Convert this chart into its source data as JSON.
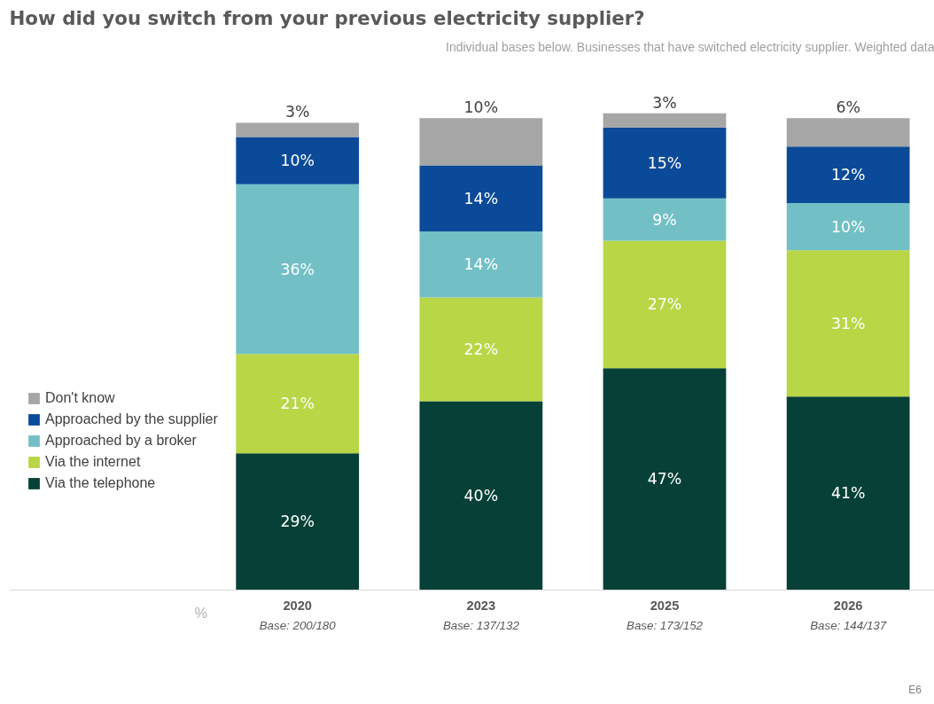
{
  "chart_data": {
    "type": "bar",
    "stacked": true,
    "legend": "left",
    "grid": false,
    "title": "How did you switch from your previous electricity supplier?",
    "subtitle": "Individual bases below. Businesses that have switched electricity supplier. Weighted data",
    "ylabel": "%",
    "categories": [
      "2020",
      "2023",
      "2025",
      "2026"
    ],
    "series": [
      {
        "name": "Via the telephone",
        "color": "#064036",
        "values": [
          29,
          40,
          47,
          41
        ],
        "value_labels": [
          "29%",
          "40%",
          "47%",
          "41%"
        ]
      },
      {
        "name": "Via the internet",
        "color": "#b8d645",
        "values": [
          21,
          22,
          27,
          31
        ],
        "value_labels": [
          "21%",
          "22%",
          "27%",
          "31%"
        ]
      },
      {
        "name": "Approached by a broker",
        "color": "#72c0c5",
        "values": [
          36,
          14,
          9,
          10
        ],
        "value_labels": [
          "36%",
          "14%",
          "9%",
          "10%"
        ]
      },
      {
        "name": "Approached by the supplier",
        "color": "#0b4a98",
        "values": [
          10,
          14,
          15,
          12
        ],
        "value_labels": [
          "10%",
          "14%",
          "15%",
          "12%"
        ]
      },
      {
        "name": "Don't know",
        "color": "#a6a6a6",
        "values": [
          3,
          10,
          3,
          6
        ],
        "value_labels": [
          "3%",
          "10%",
          "3%",
          "6%"
        ]
      }
    ],
    "annotations": [
      "Base: 200/180",
      "Base: 137/132",
      "Base: 173/152",
      "Base: 144/137",
      "E6"
    ]
  }
}
